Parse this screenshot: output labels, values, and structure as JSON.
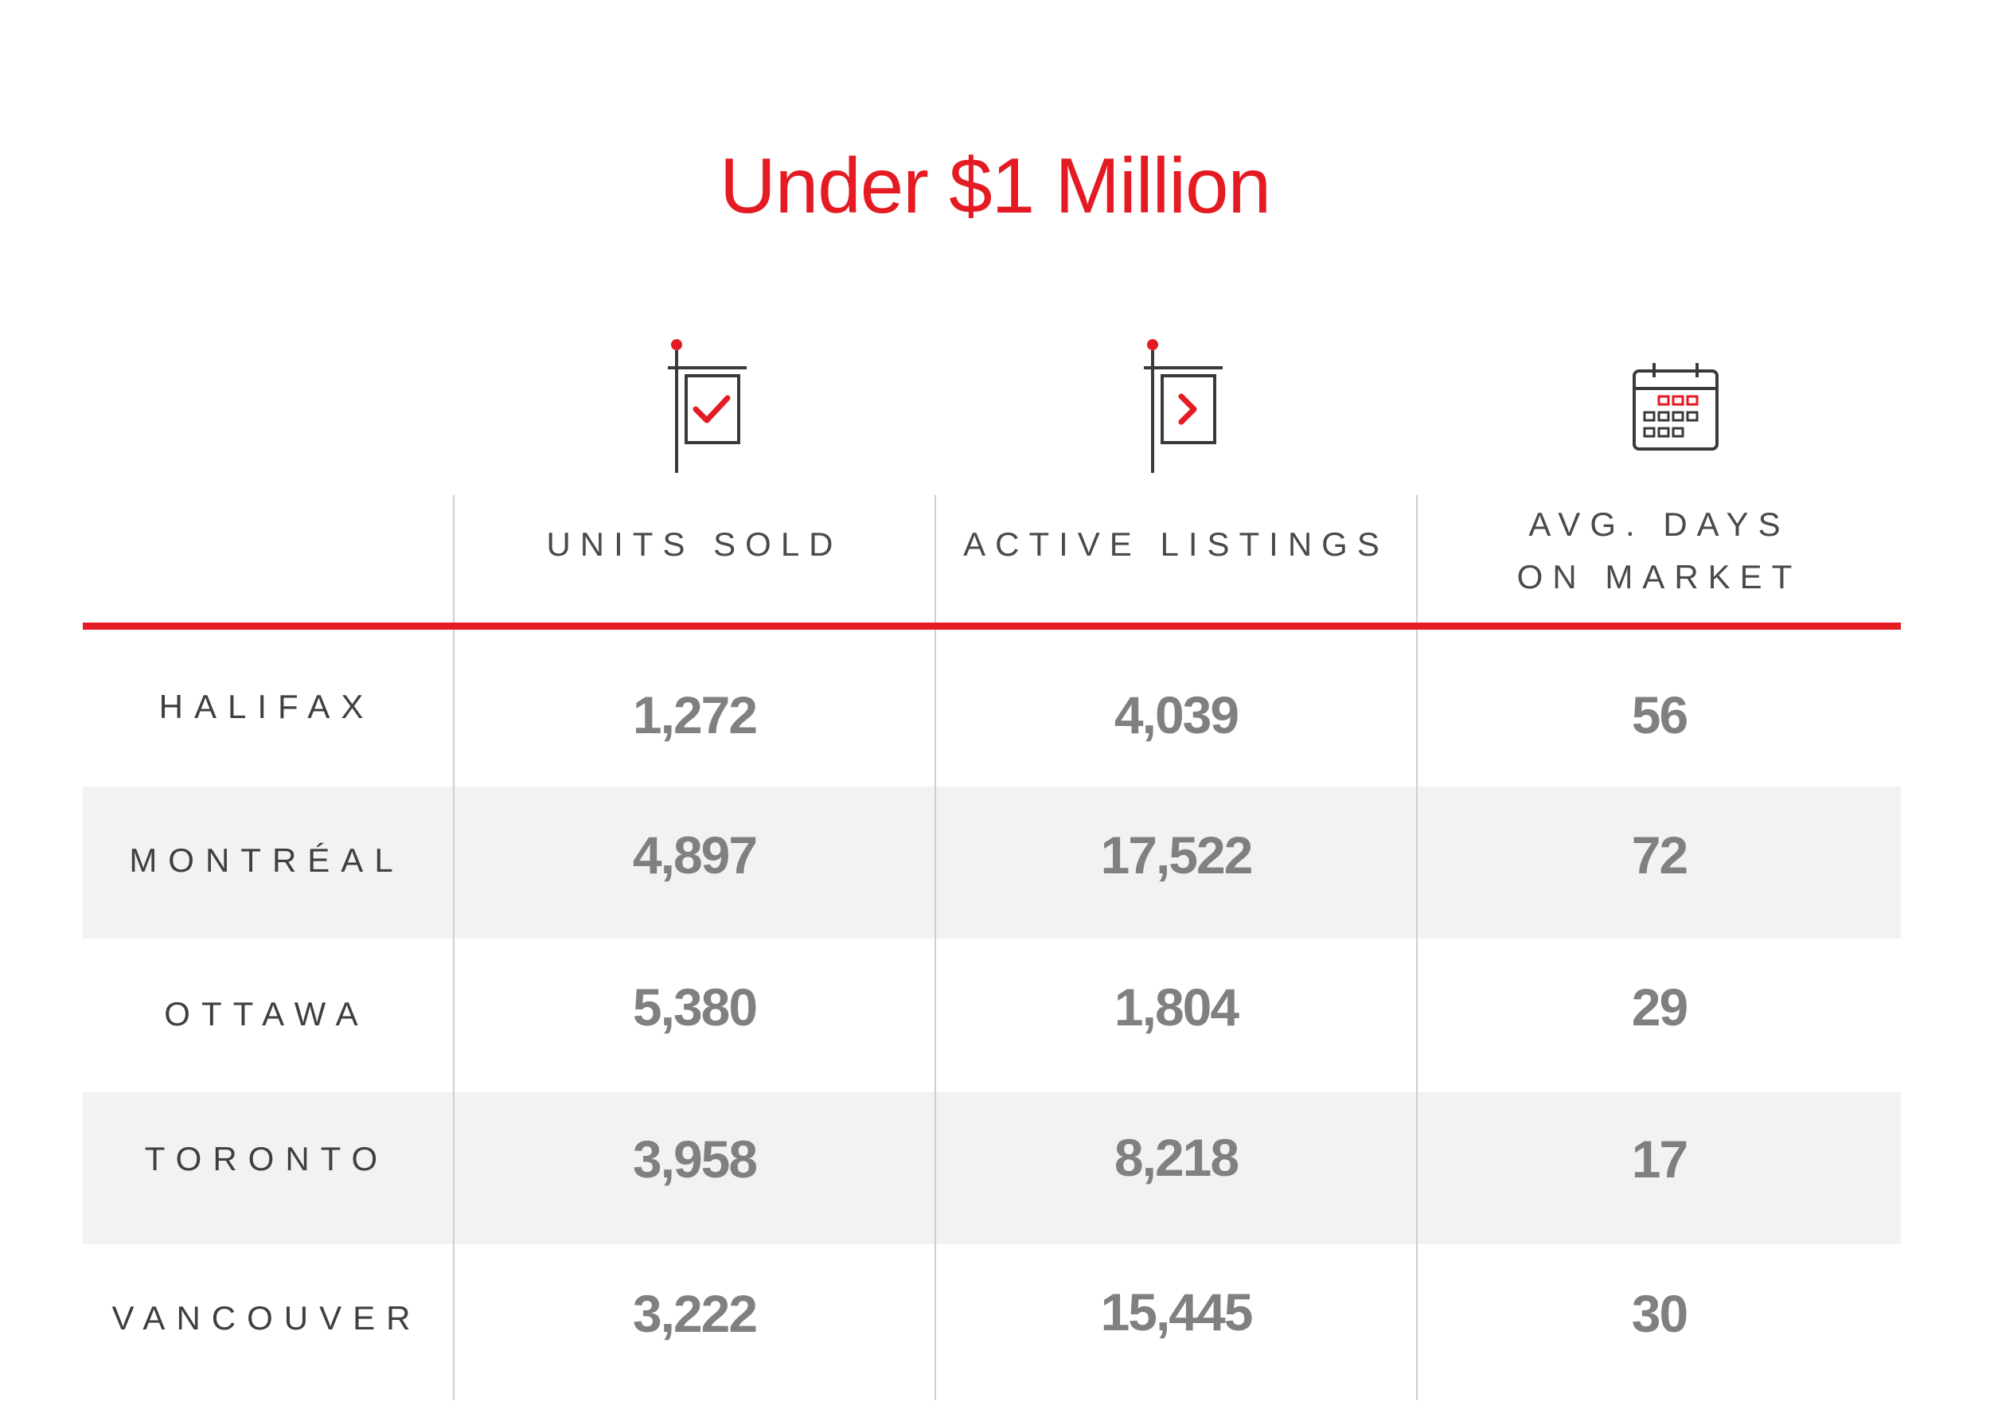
{
  "chart_data": {
    "type": "table",
    "title": "Under $1 Million",
    "columns": [
      {
        "label": "UNITS SOLD",
        "icon": "sold-sign-icon"
      },
      {
        "label": "ACTIVE LISTINGS",
        "icon": "listing-sign-icon"
      },
      {
        "label": "AVG. DAYS\nON MARKET",
        "icon": "calendar-icon"
      }
    ],
    "rows": [
      {
        "city": "HALIFAX",
        "values": [
          "1,272",
          "4,039",
          "56"
        ]
      },
      {
        "city": "MONTRÉAL",
        "values": [
          "4,897",
          "17,522",
          "72"
        ]
      },
      {
        "city": "OTTAWA",
        "values": [
          "5,380",
          "1,804",
          "29"
        ]
      },
      {
        "city": "TORONTO",
        "values": [
          "3,958",
          "8,218",
          "17"
        ]
      },
      {
        "city": "VANCOUVER",
        "values": [
          "3,222",
          "15,445",
          "30"
        ]
      }
    ]
  },
  "colors": {
    "accent": "#e41b23",
    "value_text": "#808080",
    "label_text": "#3f3f3f",
    "stripe": "#f2f2f2",
    "divider": "#cfcfcf",
    "icon_stroke": "#3a3a3a"
  }
}
